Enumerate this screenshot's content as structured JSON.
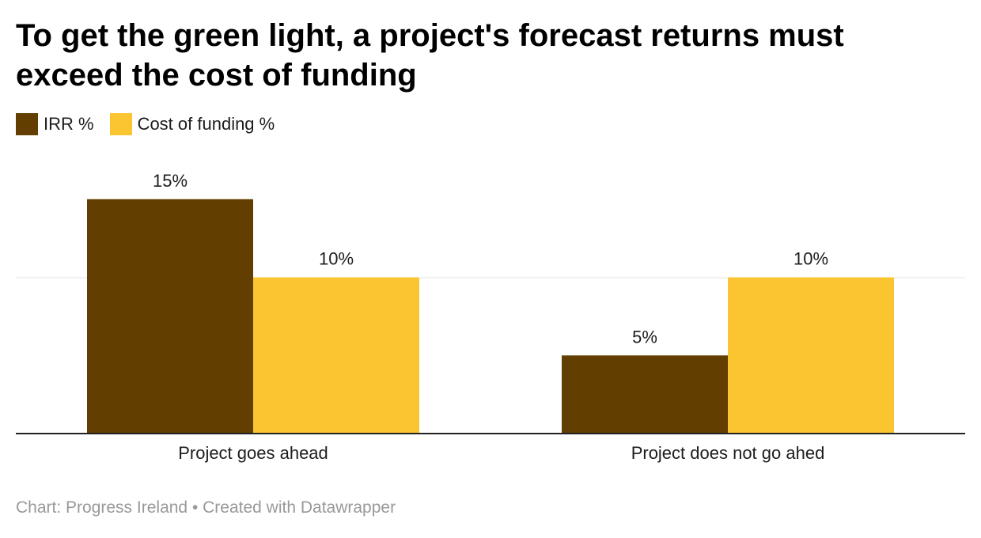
{
  "chart_data": {
    "type": "bar",
    "title": "To get the green light, a project's forecast returns must exceed the cost of funding",
    "categories": [
      "Project goes ahead",
      "Project does not go ahed"
    ],
    "series": [
      {
        "name": "IRR %",
        "color": "#623e00",
        "values": [
          15,
          5
        ],
        "labels": [
          "15%",
          "5%"
        ]
      },
      {
        "name": "Cost of funding %",
        "color": "#fbc531",
        "values": [
          10,
          10
        ],
        "labels": [
          "10%",
          "10%"
        ]
      }
    ],
    "xlabel": "",
    "ylabel": "",
    "ylim": [
      0,
      20
    ],
    "gridlines": [
      10
    ],
    "legend_position": "top-left"
  },
  "footer": {
    "source_label": "Chart: ",
    "source_name": "Progress Ireland",
    "separator": " • ",
    "credit": "Created with Datawrapper"
  },
  "colors": {
    "axis": "#222222",
    "grid": "#e3e3e3",
    "footer_text": "#999999"
  }
}
